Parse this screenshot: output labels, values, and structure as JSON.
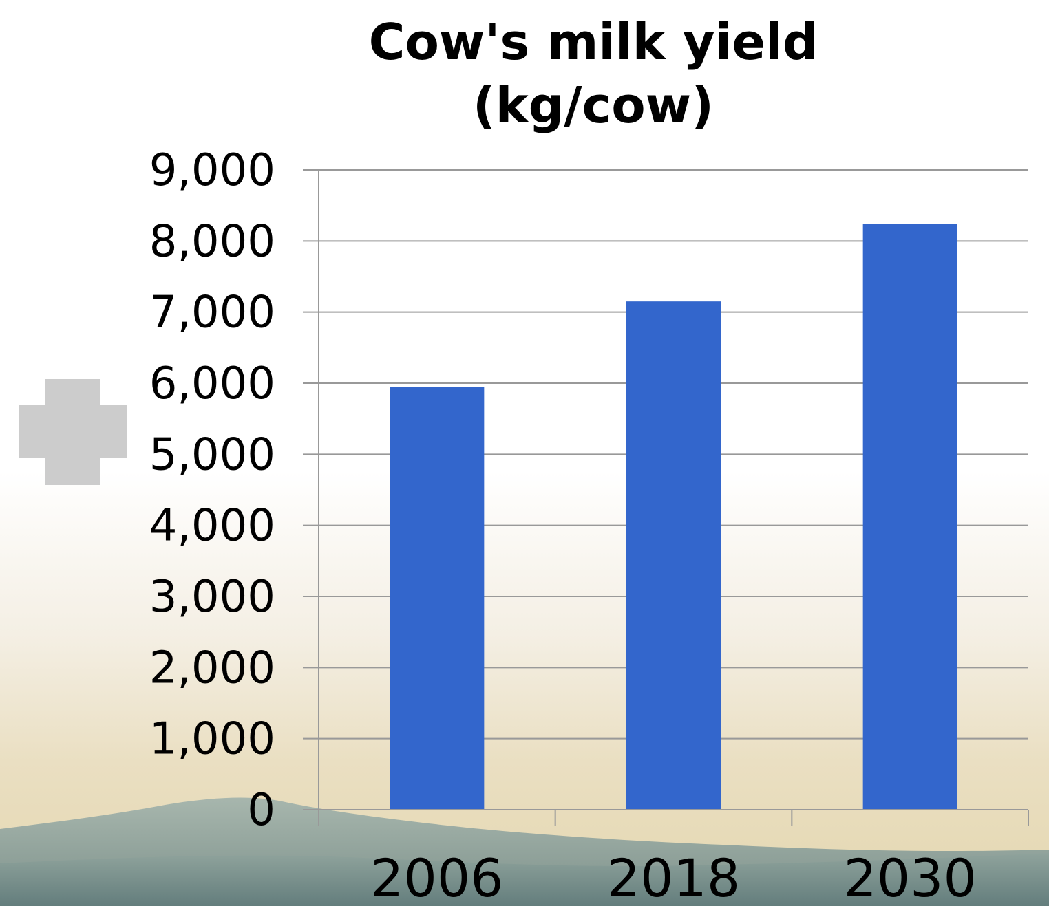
{
  "chart_data": {
    "type": "bar",
    "title": [
      "Cow's milk yield",
      "(kg/cow)"
    ],
    "xlabel": "",
    "ylabel": "",
    "categories": [
      "2006",
      "2018",
      "2030"
    ],
    "values": [
      5950,
      7150,
      8240
    ],
    "ylim": [
      0,
      9000
    ],
    "yticks": [
      "0",
      "1,000",
      "2,000",
      "3,000",
      "4,000",
      "5,000",
      "6,000",
      "7,000",
      "8,000",
      "9,000"
    ],
    "grid": true,
    "legend": "none",
    "bar_color": "#3366cc",
    "grid_color": "#999999"
  },
  "decor": {
    "plus_icon": "plus-icon",
    "plus_color": "#cccccc",
    "background": "landscape-hills"
  }
}
